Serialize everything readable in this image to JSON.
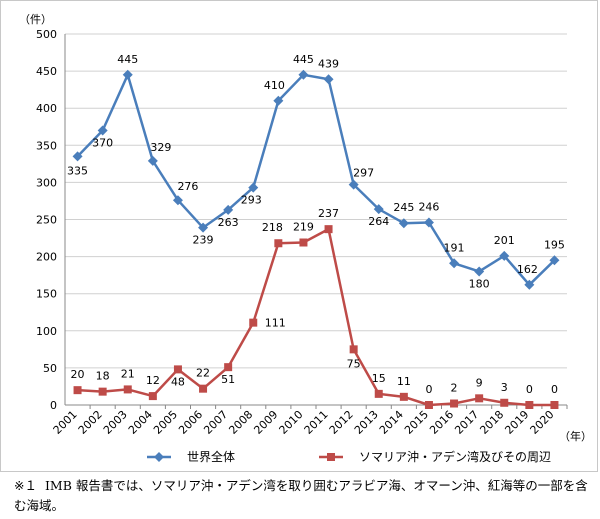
{
  "chart_data": {
    "type": "line",
    "y_unit": "（件）",
    "x_unit": "（年）",
    "ylim": [
      0,
      500
    ],
    "yticks": [
      0,
      50,
      100,
      150,
      200,
      250,
      300,
      350,
      400,
      450,
      500
    ],
    "categories": [
      "2001",
      "2002",
      "2003",
      "2004",
      "2005",
      "2006",
      "2007",
      "2008",
      "2009",
      "2010",
      "2011",
      "2012",
      "2013",
      "2014",
      "2015",
      "2016",
      "2017",
      "2018",
      "2019",
      "2020"
    ],
    "grid": true,
    "legend_position": "bottom",
    "series": [
      {
        "name": "世界全体",
        "color": "#4a7ebb",
        "marker": "diamond",
        "values": [
          335,
          370,
          445,
          329,
          276,
          239,
          263,
          293,
          410,
          445,
          439,
          297,
          264,
          245,
          246,
          191,
          180,
          201,
          162,
          195
        ]
      },
      {
        "name": "ソマリア沖・アデン湾及びその周辺",
        "color": "#be4b48",
        "marker": "square",
        "values": [
          20,
          18,
          21,
          12,
          48,
          22,
          51,
          111,
          218,
          219,
          237,
          75,
          15,
          11,
          0,
          2,
          9,
          3,
          0,
          0
        ]
      }
    ]
  },
  "footnote": {
    "mark": "※１",
    "text": "IMB 報告書では、ソマリア沖・アデン湾を取り囲むアラビア海、オマーン沖、紅海等の一部を含む海域。"
  }
}
